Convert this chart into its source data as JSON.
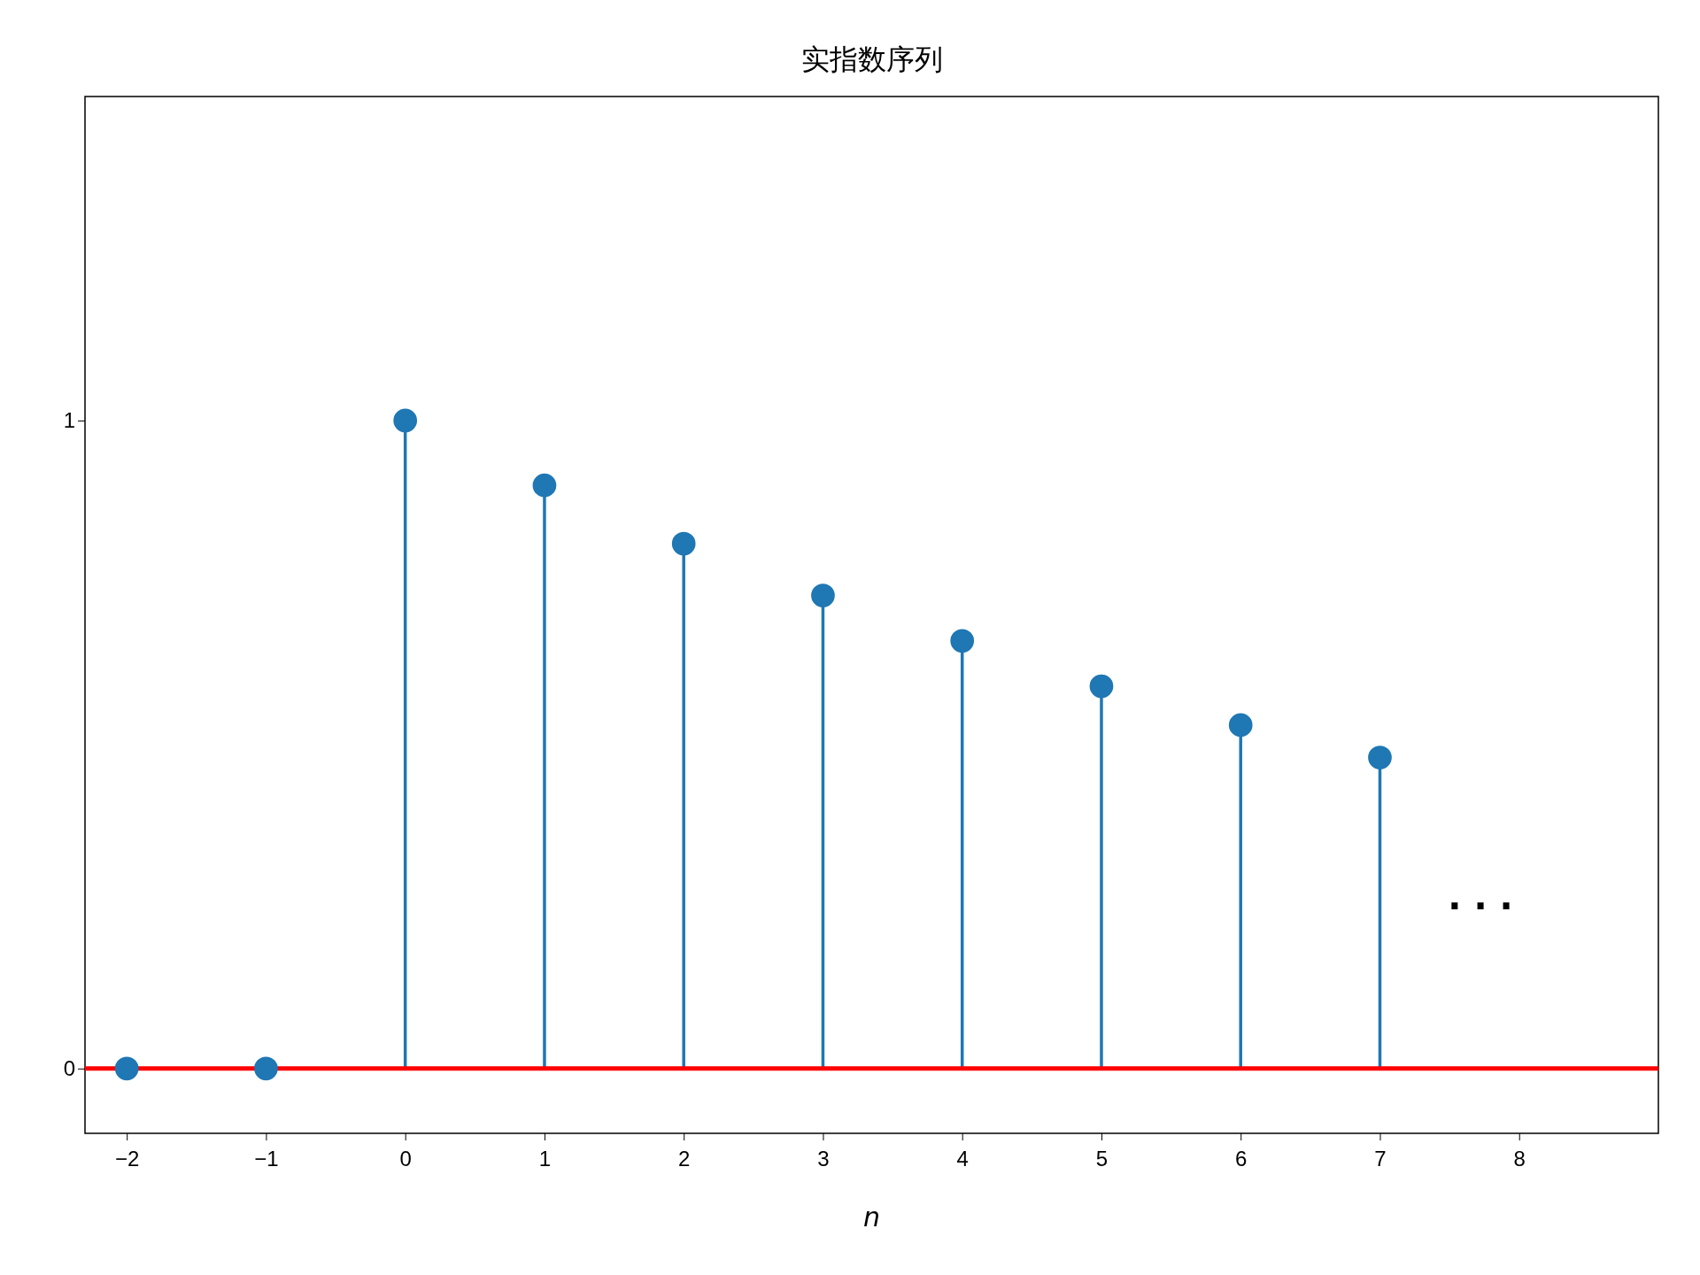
{
  "chart_data": {
    "type": "lollipop",
    "title": "实指数序列",
    "xlabel": "n",
    "x": [
      -2,
      -1,
      0,
      1,
      2,
      3,
      4,
      5,
      6,
      7
    ],
    "series": [
      {
        "color": "#1f77b4",
        "values": [
          0,
          0,
          1,
          0.9,
          0.81,
          0.73,
          0.66,
          0.59,
          0.53,
          0.48
        ]
      }
    ],
    "marker": "circle",
    "xlim": [
      -2.3,
      9
    ],
    "ylim": [
      -0.1,
      1.5
    ],
    "xticks": [
      {
        "value": -2,
        "label": "−2"
      },
      {
        "value": -1,
        "label": "−1"
      },
      0,
      1,
      2,
      3,
      4,
      5,
      6,
      7,
      8
    ],
    "yticks": [
      0,
      1
    ],
    "ref_lines": [
      {
        "axis": "y",
        "value": 0,
        "color": "#ff0000"
      }
    ],
    "annotations": [
      ". . ."
    ],
    "grid": false
  }
}
